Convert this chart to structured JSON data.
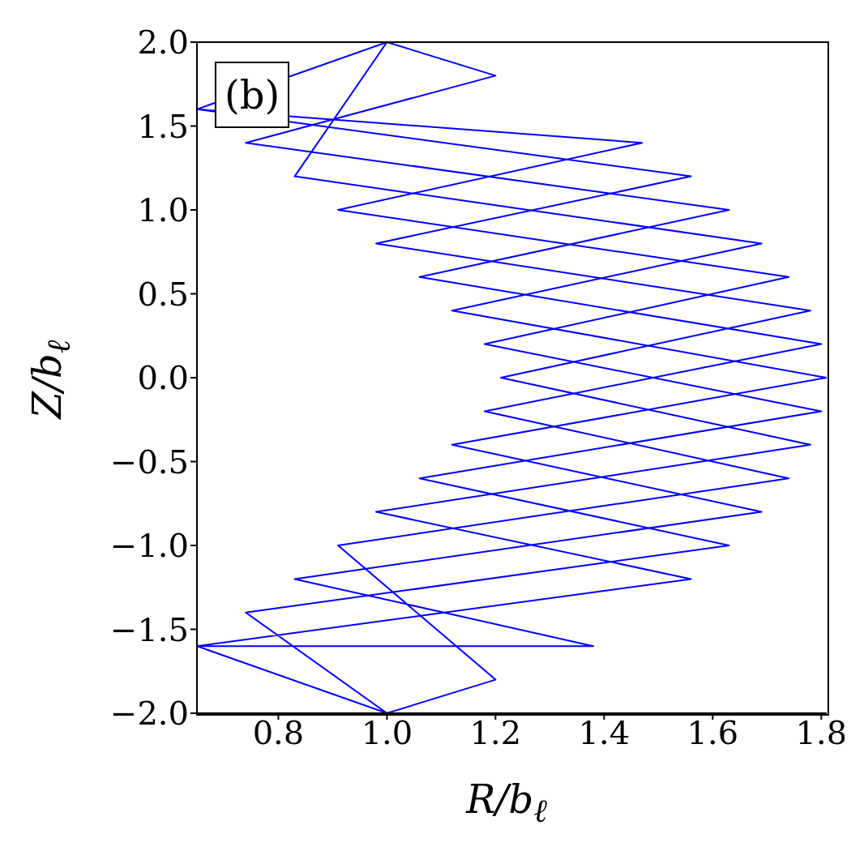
{
  "chart_data": {
    "type": "line",
    "xlabel": "R/b$_{ℓ}$",
    "ylabel": "Z/b$_{ℓ}$",
    "annotations": [
      "(b)"
    ],
    "xlim": [
      0.65,
      1.81
    ],
    "xticks": [
      0.8,
      {
        "value": 1,
        "label": "1.0"
      },
      1.2,
      1.4,
      1.6,
      1.8
    ],
    "ylim": [
      -2,
      2
    ],
    "yticks": [
      {
        "value": -2,
        "label": "−2.0"
      },
      {
        "value": -1.5,
        "label": "−1.5"
      },
      {
        "value": -1,
        "label": "−1.0"
      },
      {
        "value": -0.5,
        "label": "−0.5"
      },
      {
        "value": 0,
        "label": "0.0"
      },
      0.5,
      {
        "value": 1,
        "label": "1.0"
      },
      1.5,
      {
        "value": 2,
        "label": "2.0"
      }
    ],
    "marker": "none",
    "line_style": "solid",
    "series": [
      {
        "color": "#0000ff",
        "x": [
          0.65,
          1.56,
          0.98,
          1.78,
          1.21,
          1.78,
          0.98,
          1.56,
          0.65,
          1.0,
          0.74,
          1.63,
          1.06,
          1.8,
          1.18,
          1.74,
          0.91,
          1.47,
          0.65,
          1.0,
          0.83,
          1.69,
          1.12,
          1.81,
          1.12,
          1.69,
          0.83,
          1.38,
          0.65,
          1.0,
          1.2,
          0.91,
          1.74,
          1.18,
          1.8,
          1.06,
          1.63,
          0.74,
          1.2,
          1.0
        ],
        "values": [
          1.6,
          1.2,
          0.8,
          0.4,
          0,
          -0.4,
          -0.8,
          -1.2,
          -1.6,
          -2.0,
          -1.4,
          -1.0,
          -0.6,
          -0.2,
          0.2,
          0.6,
          1.0,
          1.4,
          1.6,
          2.0,
          1.2,
          0.8,
          0.4,
          0,
          -0.4,
          -0.8,
          -1.2,
          -1.6,
          -1.6,
          -2.0,
          -1.8,
          -1.0,
          -0.6,
          -0.2,
          0.2,
          0.6,
          1.0,
          1.4,
          1.8,
          2.0
        ]
      }
    ]
  }
}
